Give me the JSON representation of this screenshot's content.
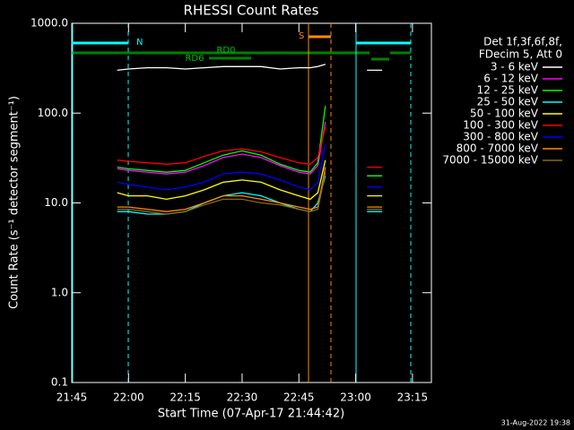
{
  "chart_data": {
    "type": "line",
    "title": "RHESSI Count Rates",
    "x_label": "Start Time (07-Apr-17 21:44:42)",
    "y_label": "Count Rate (s⁻¹ detector segment⁻¹)",
    "legend_header": [
      "Det 1f,3f,6f,8f,",
      "FDecim 5, Att 0"
    ],
    "footer": "31-Aug-2022 19:38",
    "annotations": [
      "N",
      "S",
      "RD0",
      "RD6"
    ],
    "log_y": true,
    "xlim": [
      "21:45",
      "23:20"
    ],
    "xticks": [
      "21:45",
      "22:00",
      "22:15",
      "22:30",
      "22:45",
      "23:00",
      "23:15"
    ],
    "ylim": [
      0.1,
      1000
    ],
    "yticks": [
      0.1,
      {
        "value": 1,
        "label": "1.0"
      },
      {
        "value": 10,
        "label": "10.0"
      },
      {
        "value": 100,
        "label": "100.0"
      },
      {
        "value": 1000,
        "label": "1000.0"
      }
    ],
    "x": [
      "21:57",
      "22:00",
      "22:05",
      "22:10",
      "22:15",
      "22:20",
      "22:25",
      "22:30",
      "22:35",
      "22:40",
      "22:45",
      "22:48",
      "22:50",
      "22:52",
      "22:55",
      "23:03",
      "23:05",
      "23:07"
    ],
    "series": [
      {
        "name": "3 - 6 keV",
        "color": "#ffffff",
        "values": [
          300,
          310,
          320,
          320,
          310,
          320,
          330,
          330,
          330,
          310,
          320,
          320,
          330,
          350,
          null,
          300,
          300,
          300
        ]
      },
      {
        "name": "6 - 12 keV",
        "color": "#ff00ff",
        "values": [
          24,
          23,
          22,
          21,
          22,
          26,
          32,
          35,
          32,
          26,
          22,
          21,
          26,
          80,
          null,
          20,
          20,
          20
        ]
      },
      {
        "name": "12 - 25 keV",
        "color": "#00ff00",
        "values": [
          25,
          24,
          23,
          22,
          23,
          28,
          34,
          38,
          34,
          27,
          23,
          22,
          28,
          120,
          null,
          20,
          20,
          20
        ]
      },
      {
        "name": "25 - 50 keV",
        "color": "#00ffff",
        "values": [
          8,
          8,
          7.5,
          7.5,
          8,
          10,
          12,
          13,
          12,
          10,
          8.5,
          8,
          10,
          20,
          null,
          8,
          8,
          8
        ]
      },
      {
        "name": "50 - 100 keV",
        "color": "#ffff00",
        "values": [
          13,
          12,
          12,
          11,
          12,
          14,
          17,
          18,
          17,
          14,
          12,
          11,
          13,
          30,
          null,
          12,
          12,
          12
        ]
      },
      {
        "name": "100 - 300 keV",
        "color": "#ff0000",
        "values": [
          30,
          29,
          28,
          27,
          28,
          33,
          38,
          40,
          37,
          32,
          28,
          27,
          32,
          70,
          null,
          25,
          25,
          25
        ]
      },
      {
        "name": "300 - 800 keV",
        "color": "#0000ff",
        "values": [
          17,
          16,
          15,
          14,
          15,
          17,
          21,
          22,
          21,
          18,
          15,
          14,
          17,
          45,
          null,
          15,
          15,
          15
        ]
      },
      {
        "name": "800 - 7000 keV",
        "color": "#ff8c00",
        "values": [
          9,
          9,
          8.5,
          8,
          8.5,
          10,
          12,
          12,
          11,
          10,
          9,
          8.5,
          9,
          25,
          null,
          9,
          9,
          9
        ]
      },
      {
        "name": "7000 - 15000 keV",
        "color": "#8b6914",
        "values": [
          8.5,
          8.5,
          8,
          7.5,
          8,
          9.5,
          11,
          11,
          10,
          9.5,
          8.5,
          8,
          8.5,
          22,
          null,
          8.5,
          8.5,
          8.5
        ]
      }
    ]
  }
}
